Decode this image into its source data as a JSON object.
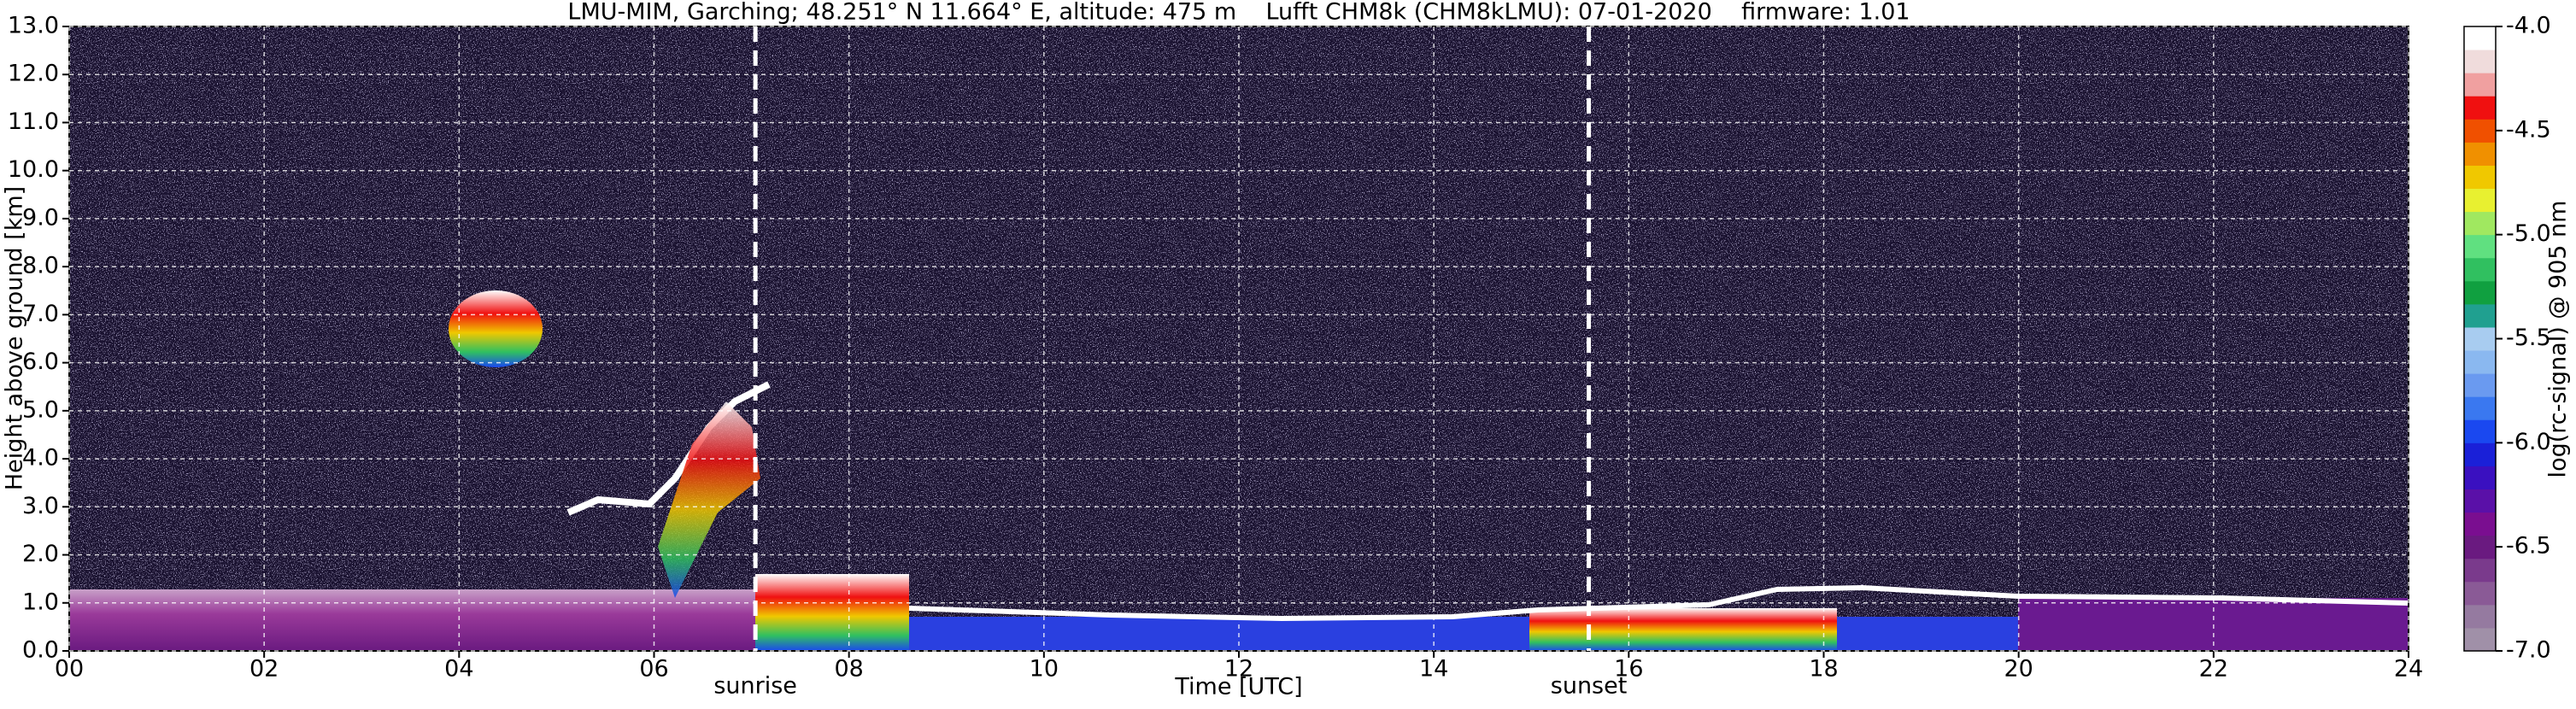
{
  "chart_data": {
    "type": "heatmap",
    "title": "LMU-MIM, Garching; 48.251° N 11.664° E, altitude: 475 m    Lufft CHM8k (CHM8kLMU): 07-01-2020    firmware: 1.01",
    "x_label": "Time [UTC]",
    "y_label": "Height above ground [km]",
    "xlim": [
      0,
      24
    ],
    "ylim": [
      0,
      13
    ],
    "xticks": [
      {
        "value": 0,
        "label": "00"
      },
      {
        "value": 2,
        "label": "02"
      },
      {
        "value": 4,
        "label": "04"
      },
      {
        "value": 6,
        "label": "06"
      },
      {
        "value": 8,
        "label": "08"
      },
      10,
      12,
      14,
      16,
      18,
      20,
      22,
      24
    ],
    "yticks": [
      {
        "value": 0,
        "label": "0.0"
      },
      {
        "value": 1,
        "label": "1.0"
      },
      {
        "value": 2,
        "label": "2.0"
      },
      {
        "value": 3,
        "label": "3.0"
      },
      {
        "value": 4,
        "label": "4.0"
      },
      {
        "value": 5,
        "label": "5.0"
      },
      {
        "value": 6,
        "label": "6.0"
      },
      {
        "value": 7,
        "label": "7.0"
      },
      {
        "value": 8,
        "label": "8.0"
      },
      {
        "value": 9,
        "label": "9.0"
      },
      {
        "value": 10,
        "label": "10.0"
      },
      {
        "value": 11,
        "label": "11.0"
      },
      {
        "value": 12,
        "label": "12.0"
      },
      {
        "value": 13,
        "label": "13.0"
      }
    ],
    "grid": true,
    "annotations": [
      {
        "text": "sunrise",
        "x": 7.04
      },
      {
        "text": "sunset",
        "x": 15.59
      }
    ],
    "colorbar": {
      "label": "log(rc-signal) @ 905 nm",
      "lim": [
        -7,
        -4
      ],
      "ticks": [
        {
          "value": -7,
          "label": "-7.0"
        },
        {
          "value": -6.5,
          "label": "-6.5"
        },
        {
          "value": -6,
          "label": "-6.0"
        },
        {
          "value": -5.5,
          "label": "-5.5"
        },
        {
          "value": -5,
          "label": "-5.0"
        },
        {
          "value": -4.5,
          "label": "-4.5"
        },
        {
          "value": -4,
          "label": "-4.0"
        }
      ],
      "colors": [
        "#a090a8",
        "#957aa0",
        "#8a5a96",
        "#7a3a8c",
        "#6a1a80",
        "#7a0e90",
        "#5a10a8",
        "#3a10c0",
        "#1a20d8",
        "#1a48f0",
        "#3a78f0",
        "#6a9af0",
        "#8ab8f0",
        "#a8ccf0",
        "#20a090",
        "#10a040",
        "#30c060",
        "#60e080",
        "#a0e860",
        "#e8f030",
        "#f0c800",
        "#f09000",
        "#f05000",
        "#f01010",
        "#f0a0a0",
        "#f0dcdc",
        "#ffffff"
      ]
    }
  }
}
